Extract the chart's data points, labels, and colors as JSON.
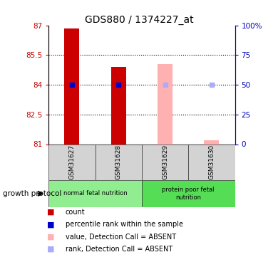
{
  "title": "GDS880 / 1374227_at",
  "samples": [
    "GSM31627",
    "GSM31628",
    "GSM31629",
    "GSM31630"
  ],
  "bar_bottom": 81,
  "ylim_left": [
    81,
    87
  ],
  "ylim_right": [
    0,
    100
  ],
  "yticks_left": [
    81,
    82.5,
    84,
    85.5,
    87
  ],
  "yticks_right": [
    0,
    25,
    50,
    75,
    100
  ],
  "ytick_labels_left": [
    "81",
    "82.5",
    "84",
    "85.5",
    "87"
  ],
  "ytick_labels_right": [
    "0",
    "25",
    "50",
    "75",
    "100%"
  ],
  "red_bar_tops": [
    86.85,
    84.9,
    null,
    null
  ],
  "pink_bar_tops": [
    null,
    null,
    85.05,
    81.18
  ],
  "blue_dot_values": [
    84.0,
    84.0,
    null,
    null
  ],
  "light_blue_dot_values": [
    null,
    null,
    84.0,
    84.0
  ],
  "bar_color_red": "#cc0000",
  "bar_color_pink": "#ffb0b0",
  "dot_color_blue": "#0000cc",
  "dot_color_light_blue": "#aaaaff",
  "axis_color_left": "#cc0000",
  "axis_color_right": "#0000bb",
  "legend_items": [
    {
      "label": "count",
      "color": "#cc0000"
    },
    {
      "label": "percentile rank within the sample",
      "color": "#0000cc"
    },
    {
      "label": "value, Detection Call = ABSENT",
      "color": "#ffb0b0"
    },
    {
      "label": "rank, Detection Call = ABSENT",
      "color": "#aaaaff"
    }
  ],
  "group_label": "growth protocol",
  "group_color_normal": "#90ee90",
  "group_color_protein": "#55dd55",
  "group_text_normal": "normal fetal nutrition",
  "group_text_protein": "protein poor fetal\nnutrition"
}
